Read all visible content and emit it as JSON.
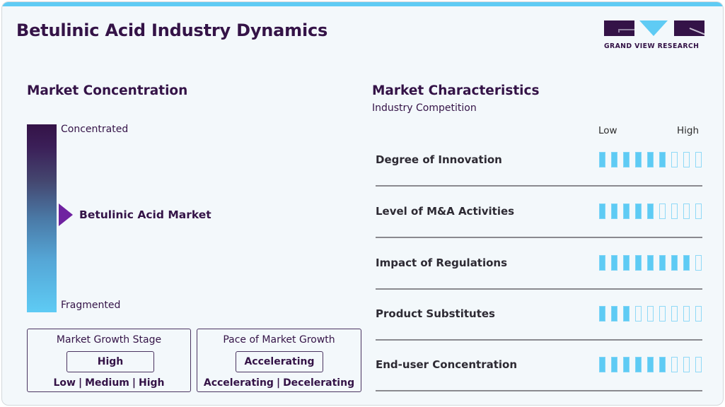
{
  "header": {
    "title": "Betulinic Acid Industry Dynamics",
    "logo_text": "GRAND VIEW RESEARCH"
  },
  "colors": {
    "accent": "#5fcbf4",
    "brand_dark": "#341347",
    "arrow": "#6f22a0",
    "background": "#f3f8fb"
  },
  "market_concentration": {
    "title": "Market Concentration",
    "top_label": "Concentrated",
    "bottom_label": "Fragmented",
    "marker_label": "Betulinic Acid Market"
  },
  "growth_stage": {
    "title": "Market Growth Stage",
    "value": "High",
    "scale": [
      "Low",
      "Medium",
      "High"
    ],
    "separator": "|"
  },
  "growth_pace": {
    "title": "Pace of Market Growth",
    "value": "Accelerating",
    "scale": [
      "Accelerating",
      "Decelerating"
    ],
    "separator": "|"
  },
  "market_characteristics": {
    "title": "Market Characteristics",
    "subtitle": "Industry Competition",
    "scale_low": "Low",
    "scale_high": "High",
    "max_segments": 9,
    "items": [
      {
        "label": "Degree of Innovation",
        "filled": 6
      },
      {
        "label": "Level of M&A Activities",
        "filled": 5
      },
      {
        "label": "Impact of Regulations",
        "filled": 8
      },
      {
        "label": "Product Substitutes",
        "filled": 3
      },
      {
        "label": "End-user Concentration",
        "filled": 6
      }
    ]
  }
}
